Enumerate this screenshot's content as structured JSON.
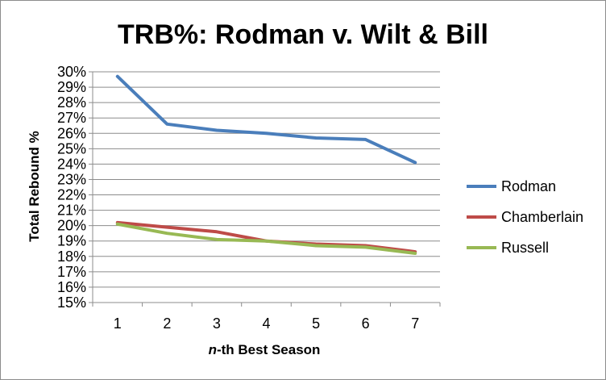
{
  "chart_data": {
    "type": "line",
    "title": "TRB%: Rodman v. Wilt & Bill",
    "xlabel_prefix": "n",
    "xlabel_suffix": "-th Best Season",
    "ylabel": "Total Rebound %",
    "x": [
      1,
      2,
      3,
      4,
      5,
      6,
      7
    ],
    "x_tick_labels": [
      "1",
      "2",
      "3",
      "4",
      "5",
      "6",
      "7"
    ],
    "ylim": [
      15,
      30
    ],
    "y_tick_labels": [
      "15%",
      "16%",
      "17%",
      "18%",
      "19%",
      "20%",
      "21%",
      "22%",
      "23%",
      "24%",
      "25%",
      "26%",
      "27%",
      "28%",
      "29%",
      "30%"
    ],
    "grid": "horizontal",
    "legend_position": "right",
    "series": [
      {
        "name": "Rodman",
        "color": "#4a7ebb",
        "values": [
          29.7,
          26.6,
          26.2,
          26.0,
          25.7,
          25.6,
          24.1
        ]
      },
      {
        "name": "Chamberlain",
        "color": "#be4b48",
        "values": [
          20.2,
          19.9,
          19.6,
          19.0,
          18.8,
          18.7,
          18.3
        ]
      },
      {
        "name": "Russell",
        "color": "#98b954",
        "values": [
          20.1,
          19.5,
          19.1,
          19.0,
          18.7,
          18.6,
          18.2
        ]
      }
    ]
  }
}
